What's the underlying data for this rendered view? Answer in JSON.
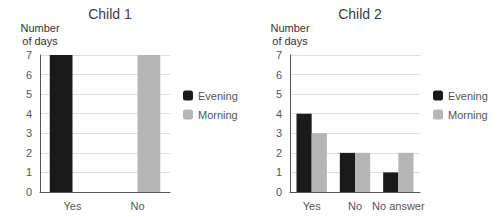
{
  "chart_data": [
    {
      "type": "bar",
      "title": "Child 1",
      "ylabel": "Number\nof days",
      "categories": [
        "Yes",
        "No"
      ],
      "series": [
        {
          "name": "Evening",
          "color": "#1a1a1a",
          "values": [
            7,
            0
          ]
        },
        {
          "name": "Morning",
          "color": "#b5b5b5",
          "values": [
            0,
            7
          ]
        }
      ],
      "ylim": [
        0,
        7
      ],
      "yticks": [
        0,
        1,
        2,
        3,
        4,
        5,
        6,
        7
      ],
      "grid": true,
      "legend": "right"
    },
    {
      "type": "bar",
      "title": "Child 2",
      "ylabel": "Number\nof days",
      "categories": [
        "Yes",
        "No",
        "No answer"
      ],
      "series": [
        {
          "name": "Evening",
          "color": "#1a1a1a",
          "values": [
            4,
            2,
            1
          ]
        },
        {
          "name": "Morning",
          "color": "#b5b5b5",
          "values": [
            3,
            2,
            2
          ]
        }
      ],
      "ylim": [
        0,
        7
      ],
      "yticks": [
        0,
        1,
        2,
        3,
        4,
        5,
        6,
        7
      ],
      "grid": true,
      "legend": "right"
    }
  ]
}
